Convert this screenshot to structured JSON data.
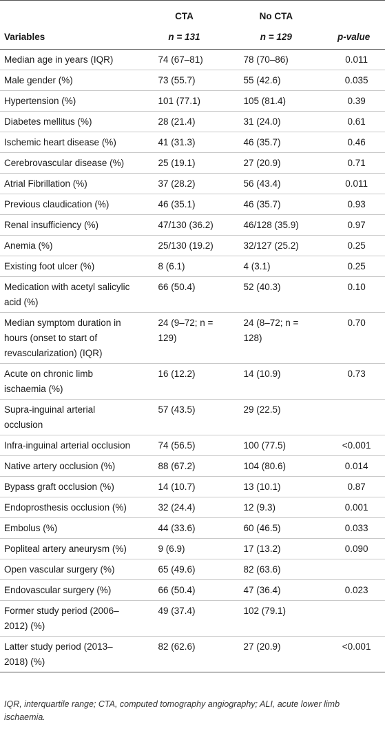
{
  "header": {
    "group1": "CTA",
    "group1_n": "n = 131",
    "group2": "No CTA",
    "group2_n": "n = 129",
    "col_variables": "Variables",
    "col_p": "p-value"
  },
  "rows": [
    {
      "variable": "Median age in years (IQR)",
      "cta": "74 (67–81)",
      "no_cta": "78 (70–86)",
      "p": "0.011"
    },
    {
      "variable": "Male gender (%)",
      "cta": "73 (55.7)",
      "no_cta": "55 (42.6)",
      "p": "0.035"
    },
    {
      "variable": "Hypertension (%)",
      "cta": "101 (77.1)",
      "no_cta": "105 (81.4)",
      "p": "0.39"
    },
    {
      "variable": "Diabetes mellitus (%)",
      "cta": "28 (21.4)",
      "no_cta": "31 (24.0)",
      "p": "0.61"
    },
    {
      "variable": "Ischemic heart disease (%)",
      "cta": "41 (31.3)",
      "no_cta": "46 (35.7)",
      "p": "0.46"
    },
    {
      "variable": "Cerebrovascular disease (%)",
      "cta": "25 (19.1)",
      "no_cta": "27 (20.9)",
      "p": "0.71"
    },
    {
      "variable": "Atrial Fibrillation (%)",
      "cta": "37 (28.2)",
      "no_cta": "56 (43.4)",
      "p": "0.011"
    },
    {
      "variable": "Previous claudication (%)",
      "cta": "46 (35.1)",
      "no_cta": "46 (35.7)",
      "p": "0.93"
    },
    {
      "variable": "Renal insufficiency (%)",
      "cta": "47/130 (36.2)",
      "no_cta": "46/128 (35.9)",
      "p": "0.97"
    },
    {
      "variable": "Anemia (%)",
      "cta": "25/130 (19.2)",
      "no_cta": "32/127 (25.2)",
      "p": "0.25"
    },
    {
      "variable": "Existing foot ulcer (%)",
      "cta": "8 (6.1)",
      "no_cta": "4 (3.1)",
      "p": "0.25"
    },
    {
      "variable": "Medication with acetyl salicylic acid (%)",
      "cta": "66 (50.4)",
      "no_cta": "52 (40.3)",
      "p": "0.10"
    },
    {
      "variable": "Median symptom duration in hours (onset to start of revascularization) (IQR)",
      "cta": "24 (9–72; n = 129)",
      "no_cta": "24 (8–72; n = 128)",
      "p": "0.70"
    },
    {
      "variable": "Acute on chronic limb ischaemia (%)",
      "cta": "16 (12.2)",
      "no_cta": "14 (10.9)",
      "p": "0.73"
    },
    {
      "variable": "Supra-inguinal arterial occlusion",
      "cta": "57 (43.5)",
      "no_cta": "29 (22.5)",
      "p": ""
    },
    {
      "variable": "Infra-inguinal arterial occlusion",
      "cta": "74 (56.5)",
      "no_cta": "100 (77.5)",
      "p": "<0.001"
    },
    {
      "variable": "Native artery occlusion (%)",
      "cta": "88 (67.2)",
      "no_cta": "104 (80.6)",
      "p": "0.014"
    },
    {
      "variable": "Bypass graft occlusion (%)",
      "cta": "14 (10.7)",
      "no_cta": "13 (10.1)",
      "p": "0.87"
    },
    {
      "variable": "Endoprosthesis occlusion (%)",
      "cta": "32 (24.4)",
      "no_cta": "12 (9.3)",
      "p": "0.001"
    },
    {
      "variable": "Embolus (%)",
      "cta": "44 (33.6)",
      "no_cta": "60 (46.5)",
      "p": "0.033"
    },
    {
      "variable": "Popliteal artery aneurysm (%)",
      "cta": "9 (6.9)",
      "no_cta": "17 (13.2)",
      "p": "0.090"
    },
    {
      "variable": "Open vascular surgery (%)",
      "cta": "65 (49.6)",
      "no_cta": "82 (63.6)",
      "p": ""
    },
    {
      "variable": "Endovascular surgery (%)",
      "cta": "66 (50.4)",
      "no_cta": "47 (36.4)",
      "p": "0.023"
    },
    {
      "variable": "Former study period (2006–2012) (%)",
      "cta": "49 (37.4)",
      "no_cta": "102 (79.1)",
      "p": ""
    },
    {
      "variable": "Latter study period (2013–2018) (%)",
      "cta": "82 (62.6)",
      "no_cta": "27 (20.9)",
      "p": "<0.001"
    }
  ],
  "footnote": "IQR, interquartile range; CTA, computed tomography angiography; ALI, acute lower limb ischaemia."
}
